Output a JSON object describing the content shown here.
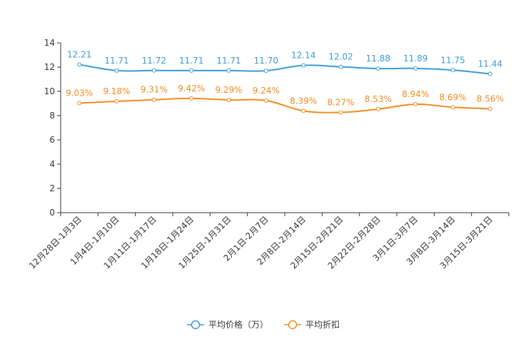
{
  "chart_data": {
    "type": "line",
    "title": "",
    "xlabel": "",
    "ylabel": "",
    "ylim": [
      0,
      14
    ],
    "yticks": [
      "0",
      "2",
      "4",
      "6",
      "8",
      "10",
      "12",
      "14"
    ],
    "categories": [
      "12月28日-1月3日",
      "1月4日-1月10日",
      "1月11日-1月17日",
      "1月18日-1月24日",
      "1月25日-1月31日",
      "2月1日-2月7日",
      "2月8日-2月14日",
      "2月15日-2月21日",
      "2月22日-2月28日",
      "3月1日-3月7日",
      "3月8日-3月14日",
      "3月15日-3月21日"
    ],
    "series": [
      {
        "name": "平均价格（万）",
        "color": "#3a9ad9",
        "values": [
          12.21,
          11.71,
          11.72,
          11.71,
          11.71,
          11.7,
          12.14,
          12.02,
          11.88,
          11.89,
          11.75,
          11.44
        ],
        "labels": [
          "12.21",
          "11.71",
          "11.72",
          "11.71",
          "11.71",
          "11.70",
          "12.14",
          "12.02",
          "11.88",
          "11.89",
          "11.75",
          "11.44"
        ]
      },
      {
        "name": "平均折扣",
        "color": "#f28a1e",
        "values": [
          9.03,
          9.18,
          9.31,
          9.42,
          9.29,
          9.24,
          8.39,
          8.27,
          8.53,
          8.94,
          8.69,
          8.56
        ],
        "labels": [
          "9.03%",
          "9.18%",
          "9.31%",
          "9.42%",
          "9.29%",
          "9.24%",
          "8.39%",
          "8.27%",
          "8.53%",
          "8.94%",
          "8.69%",
          "8.56%"
        ]
      }
    ],
    "legend_position": "bottom"
  }
}
